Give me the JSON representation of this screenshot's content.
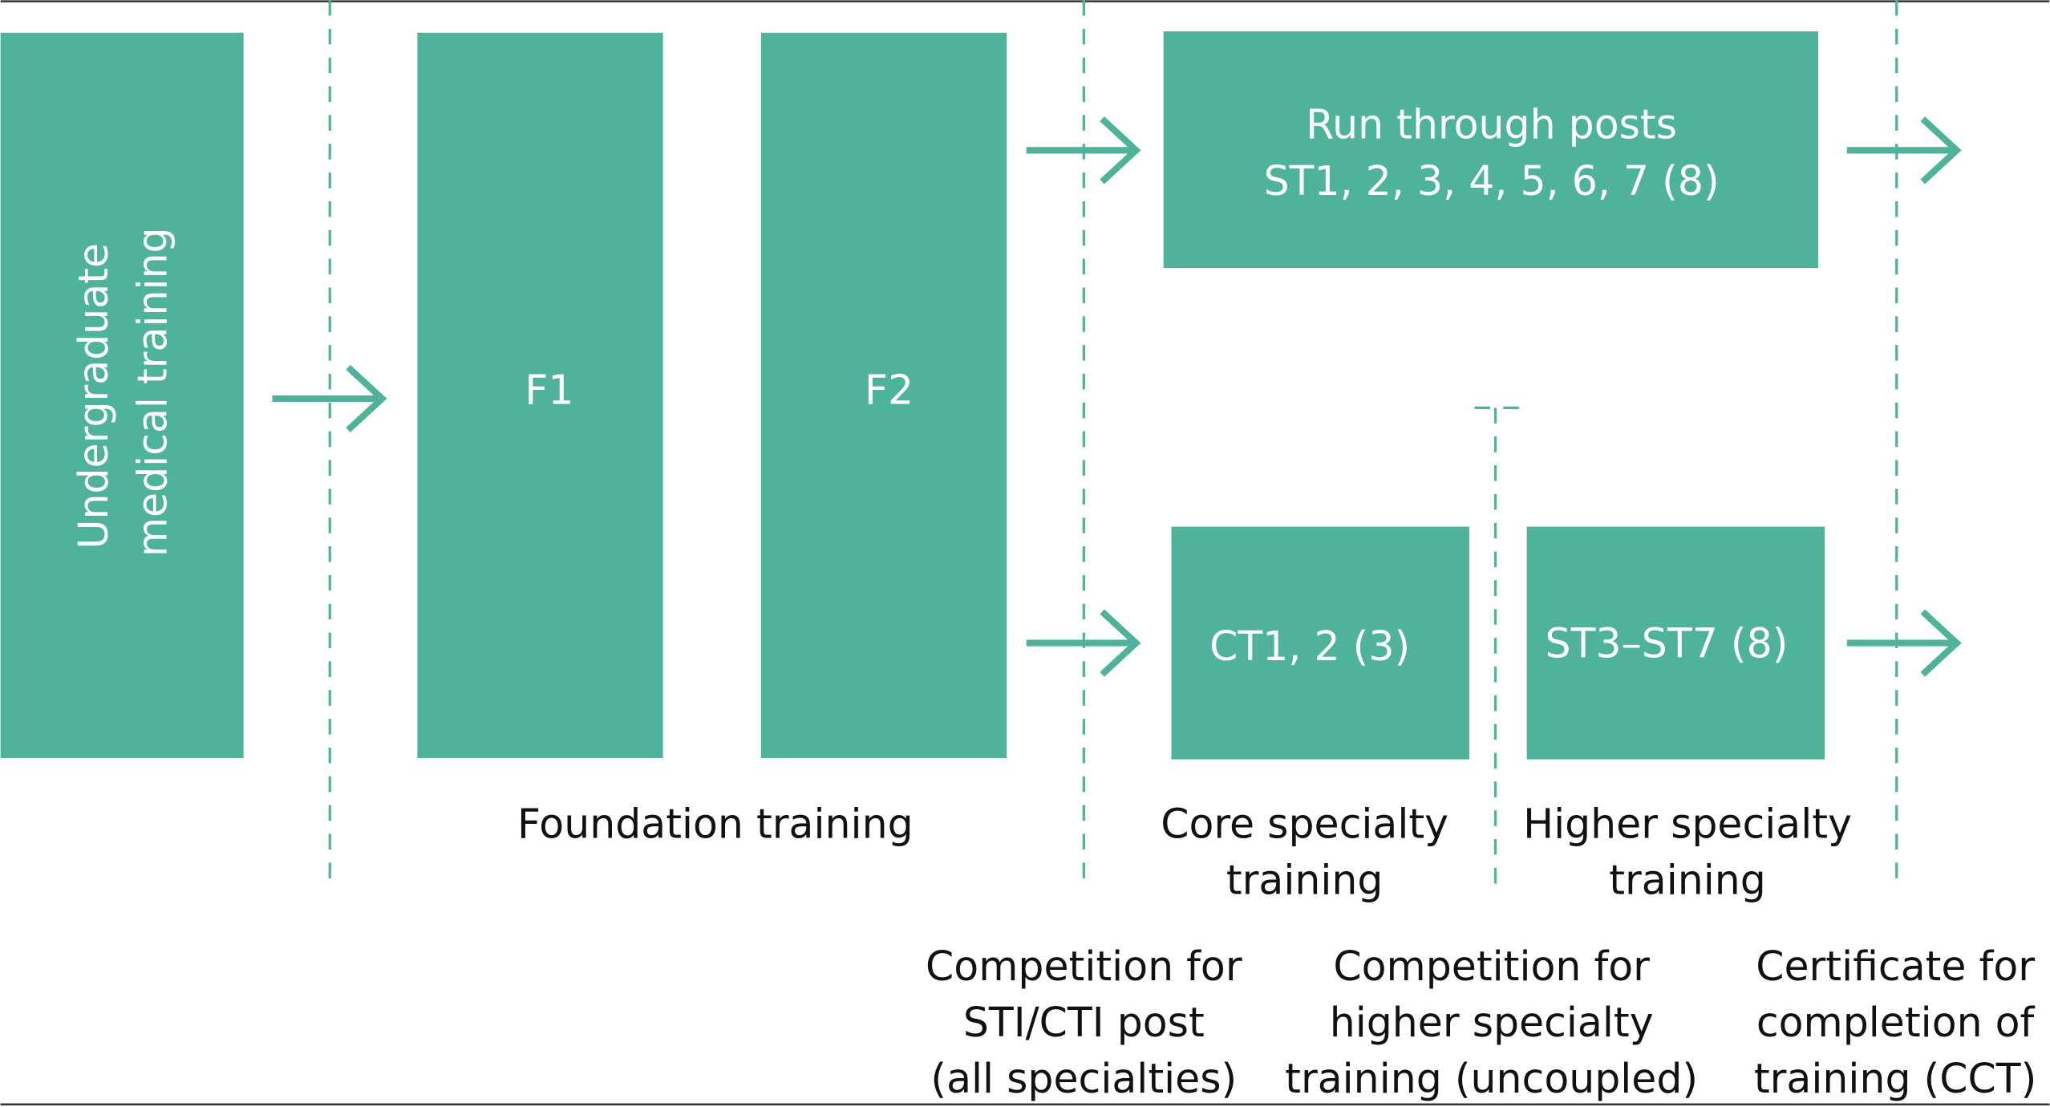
{
  "colors": {
    "box": "#4fb39c",
    "text_on_box": "#ffffff",
    "label": "#111111"
  },
  "boxes": {
    "undergraduate": [
      "Undergraduate",
      "medical training"
    ],
    "f1": "F1",
    "f2": "F2",
    "run_through": [
      "Run through posts",
      "ST1, 2, 3, 4, 5, 6, 7 (8)"
    ],
    "core": "CT1, 2 (3)",
    "higher": "ST3–ST7 (8)"
  },
  "stage_labels": {
    "foundation": "Foundation training",
    "core": [
      "Core specialty",
      "training"
    ],
    "higher": [
      "Higher specialty",
      "training"
    ]
  },
  "milestones": {
    "st1_ct1": [
      "Competition for",
      "STI/CTI post",
      "(all specialties)"
    ],
    "higher": [
      "Competition for",
      "higher specialty",
      "training (uncoupled)"
    ],
    "cct": [
      "Certificate for",
      "completion of",
      "training (CCT)"
    ]
  }
}
